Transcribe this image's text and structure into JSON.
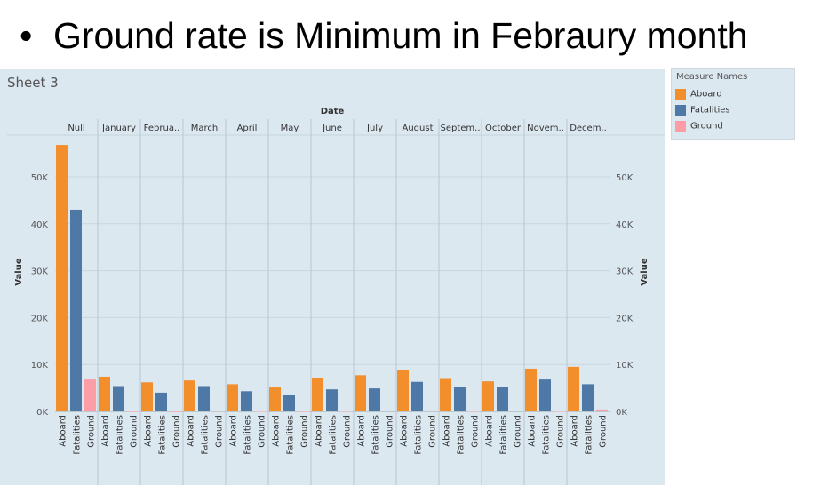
{
  "slide": {
    "bullet": "•",
    "title": "Ground rate is Minimum in Febraury month"
  },
  "sheet": {
    "title": "Sheet 3"
  },
  "legend": {
    "title": "Measure Names",
    "items": [
      {
        "label": "Aboard",
        "color": "#f28e2b"
      },
      {
        "label": "Fatalities",
        "color": "#4e79a7"
      },
      {
        "label": "Ground",
        "color": "#ff9da7"
      }
    ]
  },
  "chart_data": {
    "type": "bar",
    "title": "",
    "column_header": "Date",
    "ylabel": "Value",
    "ylim": [
      0,
      57000
    ],
    "y_ticks": [
      "0K",
      "10K",
      "20K",
      "30K",
      "40K",
      "50K"
    ],
    "categories": [
      "Null",
      "January",
      "Februa..",
      "March",
      "April",
      "May",
      "June",
      "July",
      "August",
      "Septem..",
      "October",
      "Novem..",
      "Decem.."
    ],
    "measures": [
      "Aboard",
      "Fatalities",
      "Ground"
    ],
    "series": [
      {
        "name": "Aboard",
        "values": [
          56800,
          7400,
          6200,
          6600,
          5800,
          5100,
          7200,
          7700,
          8900,
          7100,
          6400,
          9100,
          9500
        ]
      },
      {
        "name": "Fatalities",
        "values": [
          43000,
          5400,
          4000,
          5400,
          4300,
          3600,
          4700,
          4900,
          6300,
          5200,
          5300,
          6800,
          5800
        ]
      },
      {
        "name": "Ground",
        "values": [
          6800,
          30,
          20,
          120,
          60,
          40,
          80,
          200,
          200,
          80,
          180,
          60,
          400
        ]
      }
    ]
  }
}
